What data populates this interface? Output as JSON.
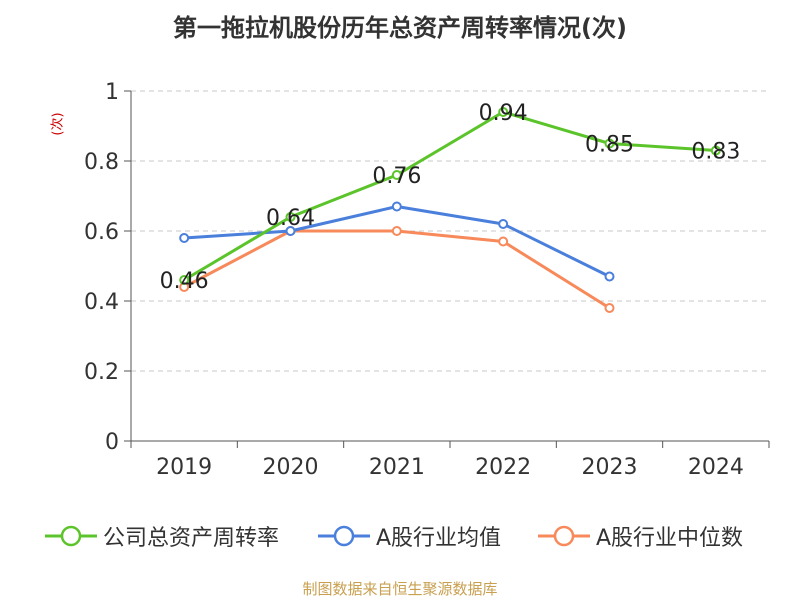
{
  "chart_data": {
    "type": "line",
    "title": "第一拖拉机股份历年总资产周转率情况(次)",
    "ylabel": "(次)",
    "xlabel": "",
    "categories": [
      "2019",
      "2020",
      "2021",
      "2022",
      "2023",
      "2024"
    ],
    "ylim": [
      0,
      1
    ],
    "yticks": [
      0,
      0.2,
      0.4,
      0.6,
      0.8,
      1
    ],
    "ytick_labels": [
      "0",
      "0.2",
      "0.4",
      "0.6",
      "0.8",
      "1"
    ],
    "grid": true,
    "legend_position": "bottom",
    "series": [
      {
        "name": "公司总资产周转率",
        "color": "#5cc42b",
        "values": [
          0.46,
          0.64,
          0.76,
          0.94,
          0.85,
          0.83
        ],
        "data_labels": [
          "0.46",
          "0.64",
          "0.76",
          "0.94",
          "0.85",
          "0.83"
        ]
      },
      {
        "name": "A股行业均值",
        "color": "#4a7fdc",
        "values": [
          0.58,
          0.6,
          0.67,
          0.62,
          0.47,
          null
        ],
        "data_labels": []
      },
      {
        "name": "A股行业中位数",
        "color": "#f7895a",
        "values": [
          0.44,
          0.6,
          0.6,
          0.57,
          0.38,
          null
        ],
        "data_labels": []
      }
    ]
  },
  "source": "制图数据来自恒生聚源数据库"
}
